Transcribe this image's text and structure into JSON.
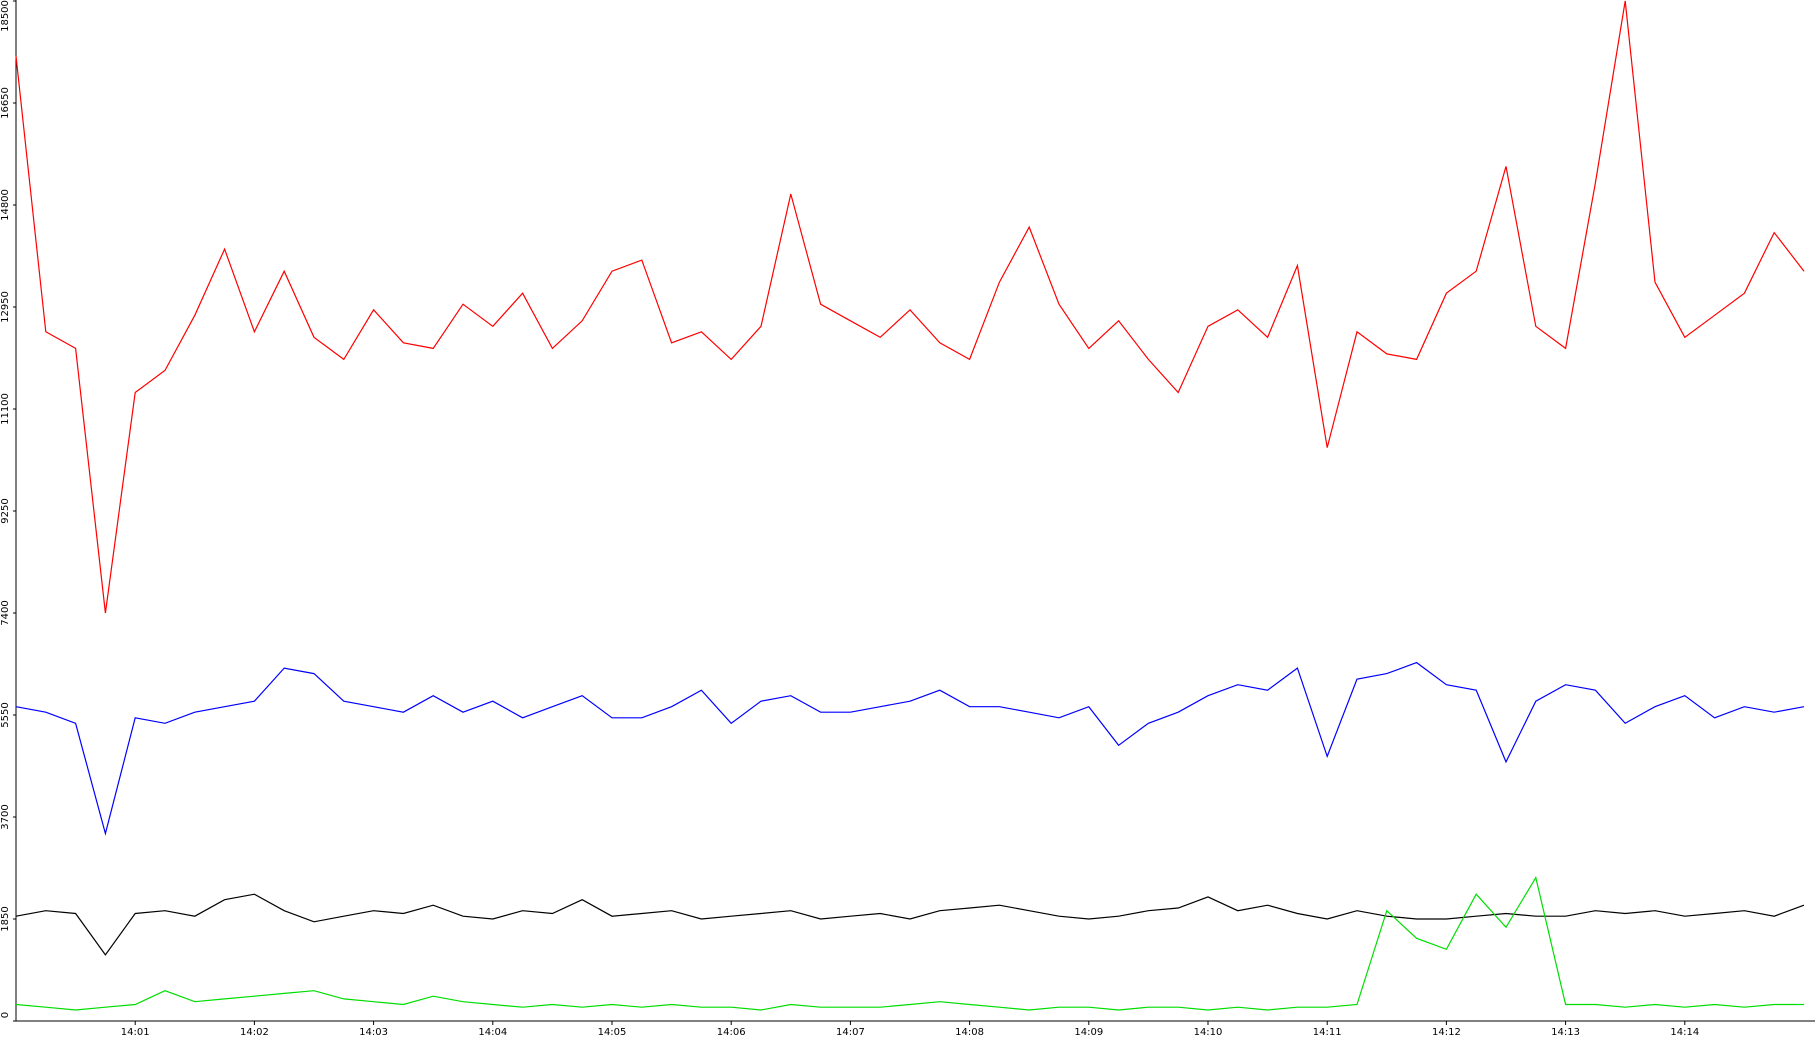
{
  "chart_data": {
    "type": "line",
    "categories": [
      null,
      null,
      null,
      null,
      "14:01",
      null,
      null,
      null,
      "14:02",
      null,
      null,
      null,
      "14:03",
      null,
      null,
      null,
      "14:04",
      null,
      null,
      null,
      "14:05",
      null,
      null,
      null,
      "14:06",
      null,
      null,
      null,
      "14:07",
      null,
      null,
      null,
      "14:08",
      null,
      null,
      null,
      "14:09",
      null,
      null,
      null,
      "14:10",
      null,
      null,
      null,
      "14:11",
      null,
      null,
      null,
      "14:12",
      null,
      null,
      null,
      "14:13",
      null,
      null,
      null,
      "14:14",
      null,
      null,
      null,
      null
    ],
    "series": [
      {
        "color": "#ff0000",
        "values": [
          17500,
          12500,
          12200,
          7400,
          11400,
          11800,
          12800,
          14000,
          12500,
          13600,
          12400,
          12000,
          12900,
          12300,
          12200,
          13000,
          12600,
          13200,
          12200,
          12700,
          13600,
          13800,
          12300,
          12500,
          12000,
          12600,
          15000,
          13000,
          12700,
          12400,
          12900,
          12300,
          12000,
          13400,
          14400,
          13000,
          12200,
          12700,
          12000,
          11400,
          12600,
          12900,
          12400,
          13700,
          10400,
          12500,
          12100,
          12000,
          13200,
          13600,
          15500,
          12600,
          12200,
          15200,
          18500,
          13400,
          12400,
          12800,
          13200,
          14300,
          13600
        ]
      },
      {
        "color": "#0000ff",
        "values": [
          5700,
          5600,
          5400,
          3400,
          5500,
          5400,
          5600,
          5700,
          5800,
          6400,
          6300,
          5800,
          5700,
          5600,
          5900,
          5600,
          5800,
          5500,
          5700,
          5900,
          5500,
          5500,
          5700,
          6000,
          5400,
          5800,
          5900,
          5600,
          5600,
          5700,
          5800,
          6000,
          5700,
          5700,
          5600,
          5500,
          5700,
          5000,
          5400,
          5600,
          5900,
          6100,
          6000,
          6400,
          4800,
          6200,
          6300,
          6500,
          6100,
          6000,
          4700,
          5800,
          6100,
          6000,
          5400,
          5700,
          5900,
          5500,
          5700,
          5600,
          5700
        ]
      },
      {
        "color": "#000000",
        "values": [
          1900,
          2000,
          1950,
          1200,
          1950,
          2000,
          1900,
          2200,
          2300,
          2000,
          1800,
          1900,
          2000,
          1950,
          2100,
          1900,
          1850,
          2000,
          1950,
          2200,
          1900,
          1950,
          2000,
          1850,
          1900,
          1950,
          2000,
          1850,
          1900,
          1950,
          1850,
          2000,
          2050,
          2100,
          2000,
          1900,
          1850,
          1900,
          2000,
          2050,
          2250,
          2000,
          2100,
          1950,
          1850,
          2000,
          1900,
          1850,
          1850,
          1900,
          1950,
          1900,
          1900,
          2000,
          1950,
          2000,
          1900,
          1950,
          2000,
          1900,
          2100
        ]
      },
      {
        "color": "#00dd00",
        "values": [
          300,
          250,
          200,
          250,
          300,
          550,
          350,
          400,
          450,
          500,
          550,
          400,
          350,
          300,
          450,
          350,
          300,
          250,
          300,
          250,
          300,
          250,
          300,
          250,
          250,
          200,
          300,
          250,
          250,
          250,
          300,
          350,
          300,
          250,
          200,
          250,
          250,
          200,
          250,
          250,
          200,
          250,
          200,
          250,
          250,
          300,
          2000,
          1500,
          1300,
          2300,
          1700,
          2600,
          300,
          300,
          250,
          300,
          250,
          300,
          250,
          300,
          300
        ]
      }
    ],
    "ylim": [
      0,
      18500
    ],
    "yticks": [
      0,
      1850,
      3700,
      5550,
      7400,
      9250,
      11100,
      12950,
      14800,
      16650,
      18500
    ]
  }
}
